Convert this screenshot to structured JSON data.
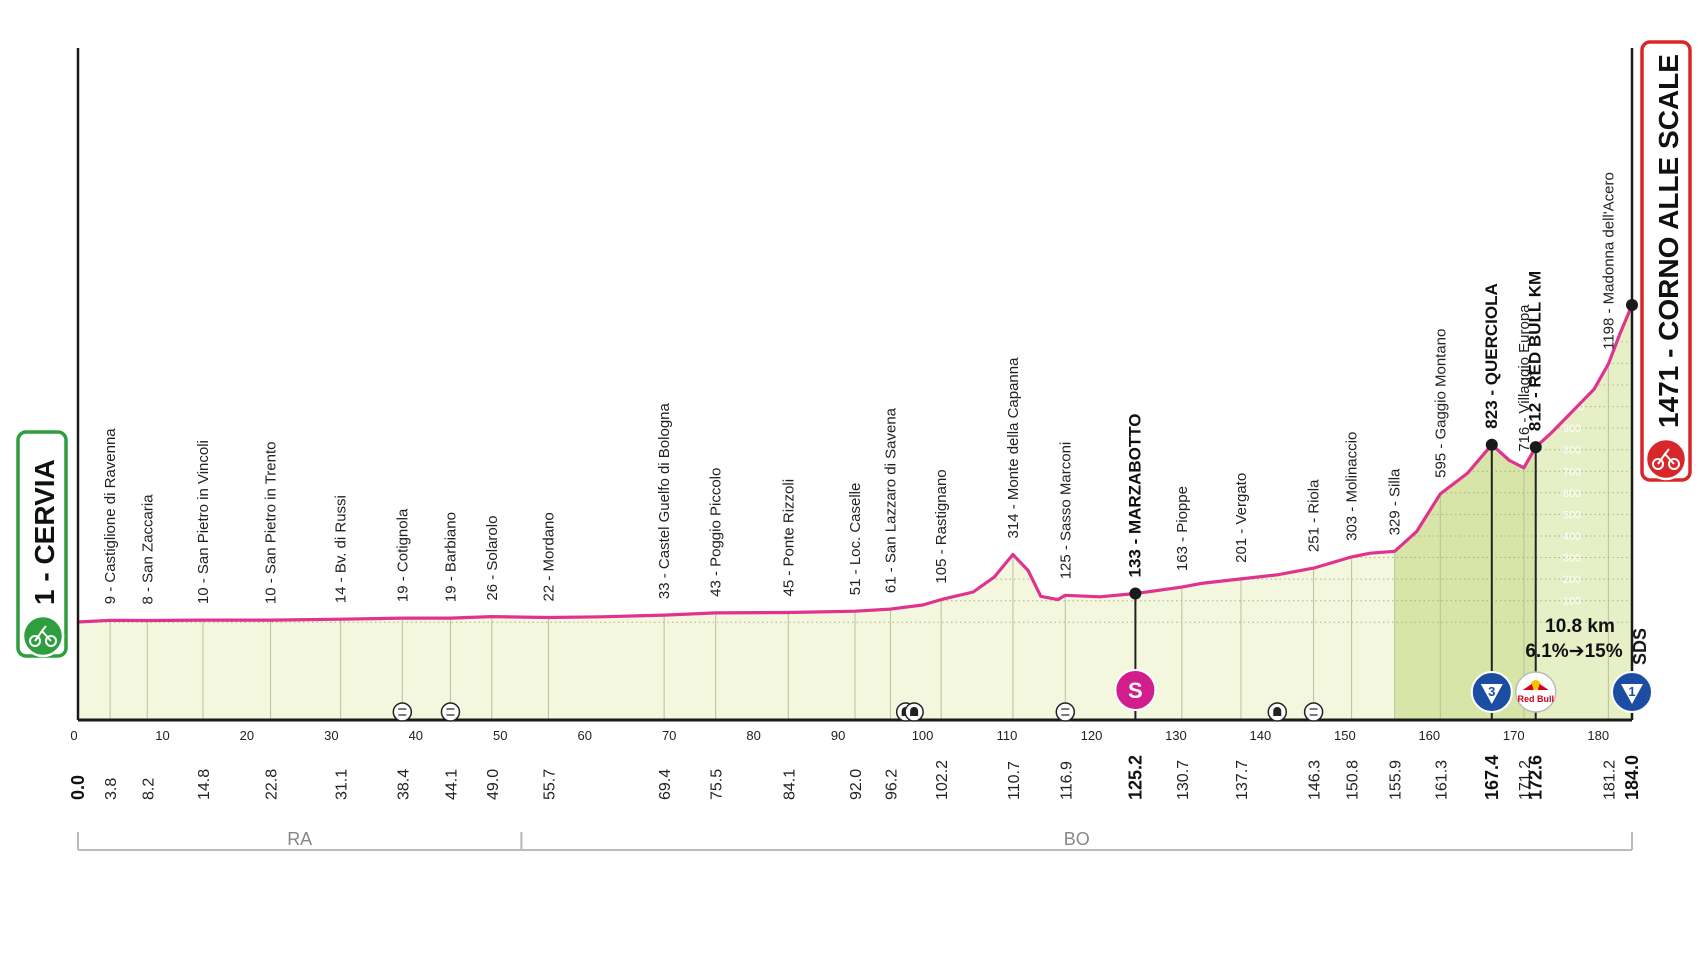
{
  "chart_data": {
    "type": "area",
    "xlim": [
      0,
      184
    ],
    "ylim": [
      0,
      1500
    ],
    "axis_ticks": [
      0,
      10,
      20,
      30,
      40,
      50,
      60,
      70,
      80,
      90,
      100,
      110,
      120,
      130,
      140,
      150,
      160,
      170,
      180
    ],
    "profile": [
      {
        "km": 0.0,
        "alt": 1
      },
      {
        "km": 3.8,
        "alt": 9
      },
      {
        "km": 8.2,
        "alt": 8
      },
      {
        "km": 14.8,
        "alt": 10
      },
      {
        "km": 22.8,
        "alt": 10
      },
      {
        "km": 31.1,
        "alt": 14
      },
      {
        "km": 38.4,
        "alt": 19
      },
      {
        "km": 44.1,
        "alt": 19
      },
      {
        "km": 49.0,
        "alt": 26
      },
      {
        "km": 55.7,
        "alt": 22
      },
      {
        "km": 62.0,
        "alt": 25
      },
      {
        "km": 69.4,
        "alt": 33
      },
      {
        "km": 75.5,
        "alt": 43
      },
      {
        "km": 84.1,
        "alt": 45
      },
      {
        "km": 92.0,
        "alt": 51
      },
      {
        "km": 96.2,
        "alt": 61
      },
      {
        "km": 100.0,
        "alt": 80
      },
      {
        "km": 102.2,
        "alt": 105
      },
      {
        "km": 106.0,
        "alt": 140
      },
      {
        "km": 108.5,
        "alt": 210
      },
      {
        "km": 110.7,
        "alt": 314
      },
      {
        "km": 112.5,
        "alt": 240
      },
      {
        "km": 114.0,
        "alt": 120
      },
      {
        "km": 116.0,
        "alt": 105
      },
      {
        "km": 116.9,
        "alt": 125
      },
      {
        "km": 121.0,
        "alt": 118
      },
      {
        "km": 125.2,
        "alt": 133
      },
      {
        "km": 130.7,
        "alt": 163
      },
      {
        "km": 133.0,
        "alt": 180
      },
      {
        "km": 137.7,
        "alt": 201
      },
      {
        "km": 142.0,
        "alt": 220
      },
      {
        "km": 146.3,
        "alt": 251
      },
      {
        "km": 150.8,
        "alt": 303
      },
      {
        "km": 153.0,
        "alt": 320
      },
      {
        "km": 155.9,
        "alt": 329
      },
      {
        "km": 158.5,
        "alt": 420
      },
      {
        "km": 161.3,
        "alt": 595
      },
      {
        "km": 164.5,
        "alt": 690
      },
      {
        "km": 167.4,
        "alt": 823
      },
      {
        "km": 169.5,
        "alt": 750
      },
      {
        "km": 171.2,
        "alt": 716
      },
      {
        "km": 172.6,
        "alt": 812
      },
      {
        "km": 174.5,
        "alt": 880
      },
      {
        "km": 177.0,
        "alt": 980
      },
      {
        "km": 179.5,
        "alt": 1080
      },
      {
        "km": 181.2,
        "alt": 1198
      },
      {
        "km": 182.5,
        "alt": 1330
      },
      {
        "km": 184.0,
        "alt": 1471
      }
    ],
    "waypoints": [
      {
        "km": "3.8",
        "x": 3.8,
        "alt": 9,
        "label": "9 - Castiglione di Ravenna",
        "bold": false
      },
      {
        "km": "8.2",
        "x": 8.2,
        "alt": 8,
        "label": "8 - San Zaccaria",
        "bold": false
      },
      {
        "km": "14.8",
        "x": 14.8,
        "alt": 10,
        "label": "10 - San Pietro in Vincoli",
        "bold": false
      },
      {
        "km": "22.8",
        "x": 22.8,
        "alt": 10,
        "label": "10 - San Pietro in Trento",
        "bold": false
      },
      {
        "km": "31.1",
        "x": 31.1,
        "alt": 14,
        "label": "14 - Bv. di Russi",
        "bold": false
      },
      {
        "km": "38.4",
        "x": 38.4,
        "alt": 19,
        "label": "19 - Cotignola",
        "bold": false
      },
      {
        "km": "44.1",
        "x": 44.1,
        "alt": 19,
        "label": "19 - Barbiano",
        "bold": false
      },
      {
        "km": "49.0",
        "x": 49.0,
        "alt": 26,
        "label": "26 - Solarolo",
        "bold": false
      },
      {
        "km": "55.7",
        "x": 55.7,
        "alt": 22,
        "label": "22 - Mordano",
        "bold": false
      },
      {
        "km": "69.4",
        "x": 69.4,
        "alt": 33,
        "label": "33 - Castel Guelfo di Bologna",
        "bold": false
      },
      {
        "km": "75.5",
        "x": 75.5,
        "alt": 43,
        "label": "43 - Poggio Piccolo",
        "bold": false
      },
      {
        "km": "84.1",
        "x": 84.1,
        "alt": 45,
        "label": "45 - Ponte Rizzoli",
        "bold": false
      },
      {
        "km": "92.0",
        "x": 92.0,
        "alt": 51,
        "label": "51 - Loc. Caselle",
        "bold": false
      },
      {
        "km": "96.2",
        "x": 96.2,
        "alt": 61,
        "label": "61 - San Lazzaro di Savena",
        "bold": false
      },
      {
        "km": "102.2",
        "x": 102.2,
        "alt": 105,
        "label": "105 - Rastignano",
        "bold": false
      },
      {
        "km": "110.7",
        "x": 110.7,
        "alt": 314,
        "label": "314 - Monte della Capanna",
        "bold": false
      },
      {
        "km": "116.9",
        "x": 116.9,
        "alt": 125,
        "label": "125 - Sasso Marconi",
        "bold": false
      },
      {
        "km": "125.2",
        "x": 125.2,
        "alt": 133,
        "label": "133 - MARZABOTTO",
        "bold": true
      },
      {
        "km": "130.7",
        "x": 130.7,
        "alt": 163,
        "label": "163 - Pioppe",
        "bold": false
      },
      {
        "km": "137.7",
        "x": 137.7,
        "alt": 201,
        "label": "201 - Vergato",
        "bold": false
      },
      {
        "km": "146.3",
        "x": 146.3,
        "alt": 251,
        "label": "251 - Riola",
        "bold": false
      },
      {
        "km": "150.8",
        "x": 150.8,
        "alt": 303,
        "label": "303 - Molinaccio",
        "bold": false
      },
      {
        "km": "155.9",
        "x": 155.9,
        "alt": 329,
        "label": "329 - Silla",
        "bold": false
      },
      {
        "km": "161.3",
        "x": 161.3,
        "alt": 595,
        "label": "595 - Gaggio Montano",
        "bold": false
      },
      {
        "km": "167.4",
        "x": 167.4,
        "alt": 823,
        "label": "823 - QUERCIOLA",
        "bold": true
      },
      {
        "km": "171.2",
        "x": 171.2,
        "alt": 716,
        "label": "716 - Villaggio Europa",
        "bold": false
      },
      {
        "km": "172.6",
        "x": 172.6,
        "alt": 812,
        "label": "812 - RED BULL KM",
        "bold": true
      },
      {
        "km": "181.2",
        "x": 181.2,
        "alt": 1198,
        "label": "1198 - Madonna dell'Acero",
        "bold": false
      }
    ],
    "start": {
      "km": "0.0",
      "alt": 1,
      "label": "1 - CERVIA"
    },
    "finish": {
      "km": "184.0",
      "alt": 1471,
      "label": "1471 - CORNO ALLE SCALE"
    },
    "climb_scale": [
      100,
      200,
      300,
      400,
      500,
      600,
      700,
      800,
      900,
      1000,
      1100,
      1200,
      1300,
      1400
    ],
    "climb_scale_labels": [
      "100",
      "200",
      "300",
      "400",
      "500",
      "600",
      "700",
      "800",
      "900",
      "1000",
      "1100",
      "1200",
      "1300",
      "1400"
    ],
    "final_climb": {
      "length": "10.8 km",
      "gradient": "6.1%➔15%"
    },
    "provinces": [
      {
        "code": "RA",
        "from": 0,
        "to": 52.5
      },
      {
        "code": "BO",
        "from": 52.5,
        "to": 184
      }
    ],
    "badges": {
      "sprint": "S",
      "kom3": "3",
      "kom1": "1",
      "redbull": "Red Bull",
      "sds": "SDS"
    }
  }
}
